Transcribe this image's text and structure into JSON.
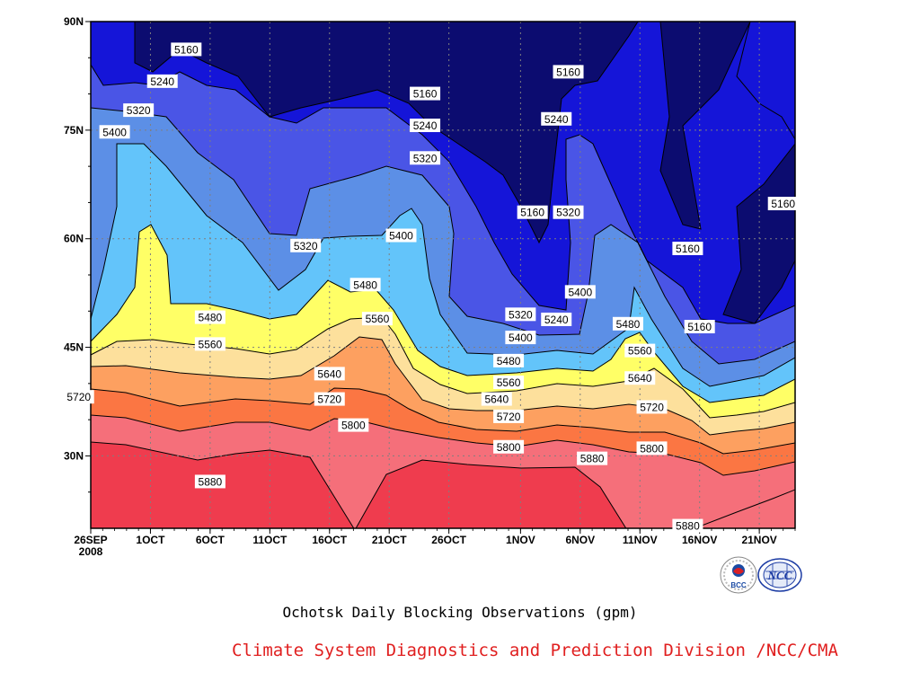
{
  "chart_data": {
    "type": "heatmap",
    "title": "Ochotsk Daily Blocking Observations (gpm)",
    "credit": "Climate System Diagnostics and Prediction Division /NCC/CMA",
    "x_ticks": [
      "26SEP",
      "1OCT",
      "6OCT",
      "11OCT",
      "16OCT",
      "21OCT",
      "26OCT",
      "1NOV",
      "6NOV",
      "11NOV",
      "16NOV",
      "21NOV"
    ],
    "x_year": "2008",
    "y_ticks": [
      "90N",
      "75N",
      "60N",
      "45N",
      "30N"
    ],
    "x_range": [
      "2008-09-26",
      "2008-11-24"
    ],
    "y_range": [
      20,
      90
    ],
    "grid": true,
    "levels": [
      5160,
      5240,
      5320,
      5400,
      5480,
      5560,
      5640,
      5720,
      5800,
      5880
    ],
    "colors": [
      "#0c0c70",
      "#1515d8",
      "#4a55e6",
      "#5c8fe6",
      "#63c4fa",
      "#ffff66",
      "#fde09c",
      "#fda060",
      "#fb7643",
      "#f56f7a",
      "#ef3c4e"
    ],
    "contour_labels": [
      {
        "text": "5160",
        "date": "2008-10-04",
        "lat": 86.1
      },
      {
        "text": "5240",
        "date": "2008-10-02",
        "lat": 81.7
      },
      {
        "text": "5320",
        "date": "2008-09-30",
        "lat": 77.7
      },
      {
        "text": "5400",
        "date": "2008-09-28",
        "lat": 74.7
      },
      {
        "text": "5160",
        "date": "2008-10-24",
        "lat": 80.0
      },
      {
        "text": "5240",
        "date": "2008-10-24",
        "lat": 75.6
      },
      {
        "text": "5320",
        "date": "2008-10-24",
        "lat": 71.1
      },
      {
        "text": "5160",
        "date": "2008-11-05",
        "lat": 83.0
      },
      {
        "text": "5240",
        "date": "2008-11-04",
        "lat": 76.5
      },
      {
        "text": "5160",
        "date": "2008-11-02",
        "lat": 63.6
      },
      {
        "text": "5320",
        "date": "2008-11-05",
        "lat": 63.6
      },
      {
        "text": "5160",
        "date": "2008-11-23",
        "lat": 64.8
      },
      {
        "text": "5160",
        "date": "2008-11-15",
        "lat": 58.6
      },
      {
        "text": "5320",
        "date": "2008-10-14",
        "lat": 59.0
      },
      {
        "text": "5400",
        "date": "2008-10-22",
        "lat": 60.4
      },
      {
        "text": "5480",
        "date": "2008-10-19",
        "lat": 53.6
      },
      {
        "text": "5480",
        "date": "2008-10-06",
        "lat": 49.1
      },
      {
        "text": "5560",
        "date": "2008-10-20",
        "lat": 48.9
      },
      {
        "text": "5560",
        "date": "2008-10-06",
        "lat": 45.4
      },
      {
        "text": "5640",
        "date": "2008-10-16",
        "lat": 41.3
      },
      {
        "text": "5720",
        "date": "2008-09-25",
        "lat": 38.1
      },
      {
        "text": "5720",
        "date": "2008-10-16",
        "lat": 37.8
      },
      {
        "text": "5800",
        "date": "2008-10-18",
        "lat": 34.2
      },
      {
        "text": "5880",
        "date": "2008-10-06",
        "lat": 26.4
      },
      {
        "text": "5320",
        "date": "2008-11-01",
        "lat": 49.5
      },
      {
        "text": "5240",
        "date": "2008-11-04",
        "lat": 48.8
      },
      {
        "text": "5400",
        "date": "2008-11-06",
        "lat": 52.6
      },
      {
        "text": "5160",
        "date": "2008-11-16",
        "lat": 47.8
      },
      {
        "text": "5400",
        "date": "2008-11-01",
        "lat": 46.3
      },
      {
        "text": "5480",
        "date": "2008-10-31",
        "lat": 43.1
      },
      {
        "text": "5480",
        "date": "2008-11-10",
        "lat": 48.2
      },
      {
        "text": "5560",
        "date": "2008-10-31",
        "lat": 40.1
      },
      {
        "text": "5560",
        "date": "2008-11-11",
        "lat": 44.5
      },
      {
        "text": "5640",
        "date": "2008-10-30",
        "lat": 37.8
      },
      {
        "text": "5640",
        "date": "2008-11-11",
        "lat": 40.7
      },
      {
        "text": "5720",
        "date": "2008-10-31",
        "lat": 35.4
      },
      {
        "text": "5720",
        "date": "2008-11-12",
        "lat": 36.7
      },
      {
        "text": "5800",
        "date": "2008-10-31",
        "lat": 31.2
      },
      {
        "text": "5800",
        "date": "2008-11-12",
        "lat": 31.0
      },
      {
        "text": "5880",
        "date": "2008-11-07",
        "lat": 29.6
      },
      {
        "text": "5880",
        "date": "2008-11-15",
        "lat": 20.3
      }
    ]
  },
  "logos": {
    "bcc": "BCC",
    "ncc": "NCC"
  }
}
